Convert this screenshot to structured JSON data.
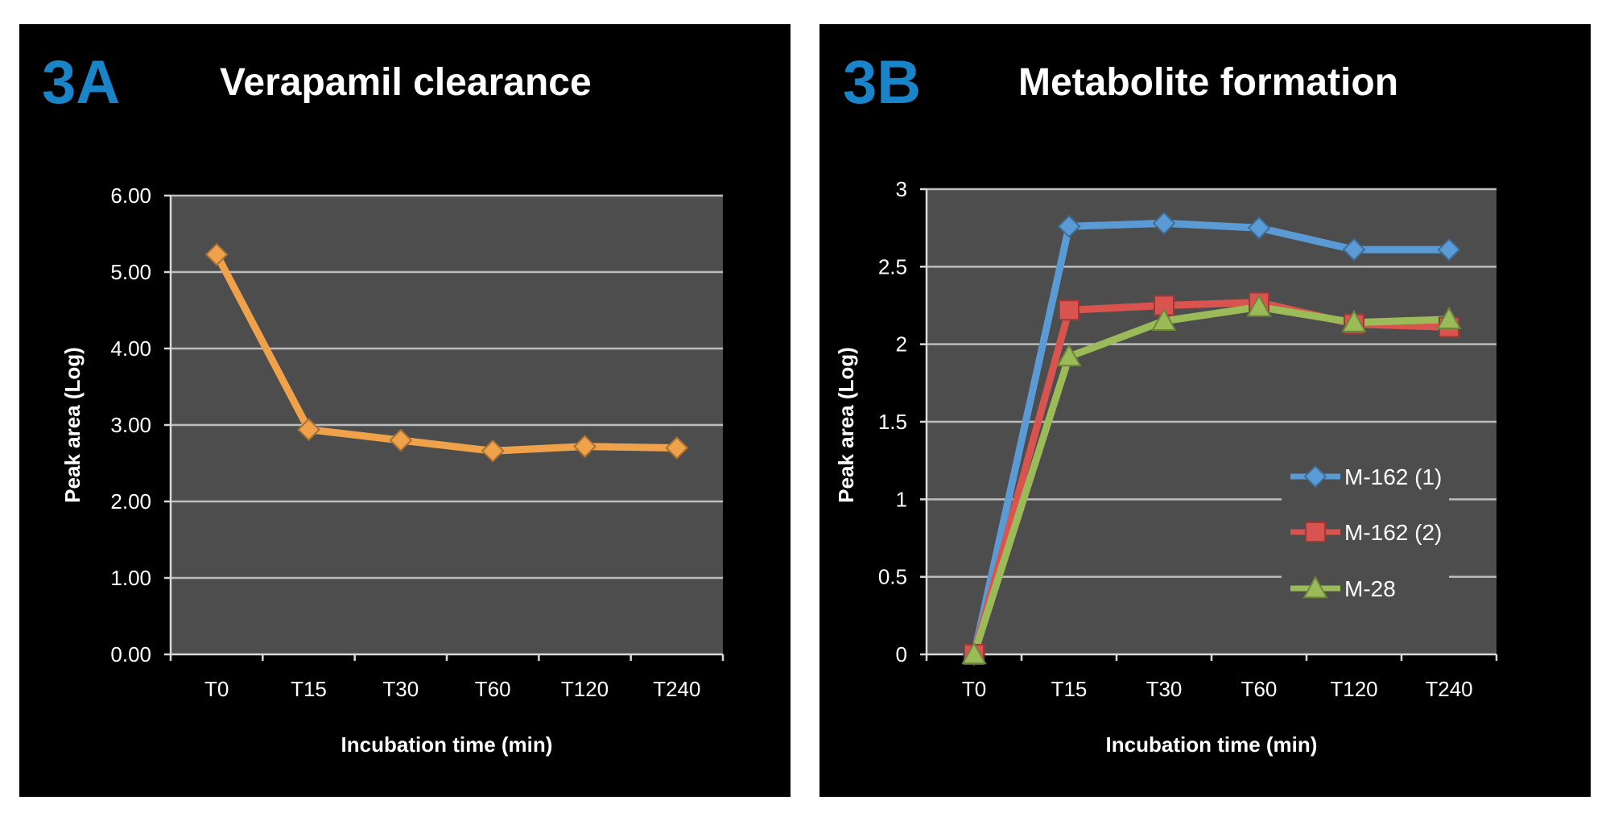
{
  "chart_data": [
    {
      "type": "line",
      "panel_letter": "3A",
      "title": "Verapamil clearance",
      "xlabel": "Incubation time (min)",
      "ylabel": "Peak area (Log)",
      "categories": [
        "T0",
        "T15",
        "T30",
        "T60",
        "T120",
        "T240"
      ],
      "ylim": [
        0,
        6
      ],
      "yticks": [
        "0.00",
        "1.00",
        "2.00",
        "3.00",
        "4.00",
        "5.00",
        "6.00"
      ],
      "grid": true,
      "legend": "none",
      "series": [
        {
          "name": "Verapamil",
          "color": "#f0a24a",
          "marker": "diamond",
          "values": [
            5.23,
            2.94,
            2.8,
            2.66,
            2.72,
            2.7
          ]
        }
      ]
    },
    {
      "type": "line",
      "panel_letter": "3B",
      "title": "Metabolite formation",
      "xlabel": "Incubation time (min)",
      "ylabel": "Peak area (Log)",
      "categories": [
        "T0",
        "T15",
        "T30",
        "T60",
        "T120",
        "T240"
      ],
      "ylim": [
        0,
        3
      ],
      "yticks": [
        "0",
        "0.5",
        "1",
        "1.5",
        "2",
        "2.5",
        "3"
      ],
      "grid": true,
      "legend": "right",
      "series": [
        {
          "name": "M-162 (1)",
          "color": "#5a9bd5",
          "marker": "diamond",
          "values": [
            0,
            2.76,
            2.78,
            2.75,
            2.61,
            2.61
          ]
        },
        {
          "name": "M-162 (2)",
          "color": "#d9534f",
          "marker": "square",
          "values": [
            0,
            2.22,
            2.25,
            2.27,
            2.13,
            2.11
          ]
        },
        {
          "name": "M-28",
          "color": "#9bbb59",
          "marker": "triangle",
          "values": [
            0,
            1.92,
            2.15,
            2.24,
            2.14,
            2.16
          ]
        }
      ]
    }
  ]
}
